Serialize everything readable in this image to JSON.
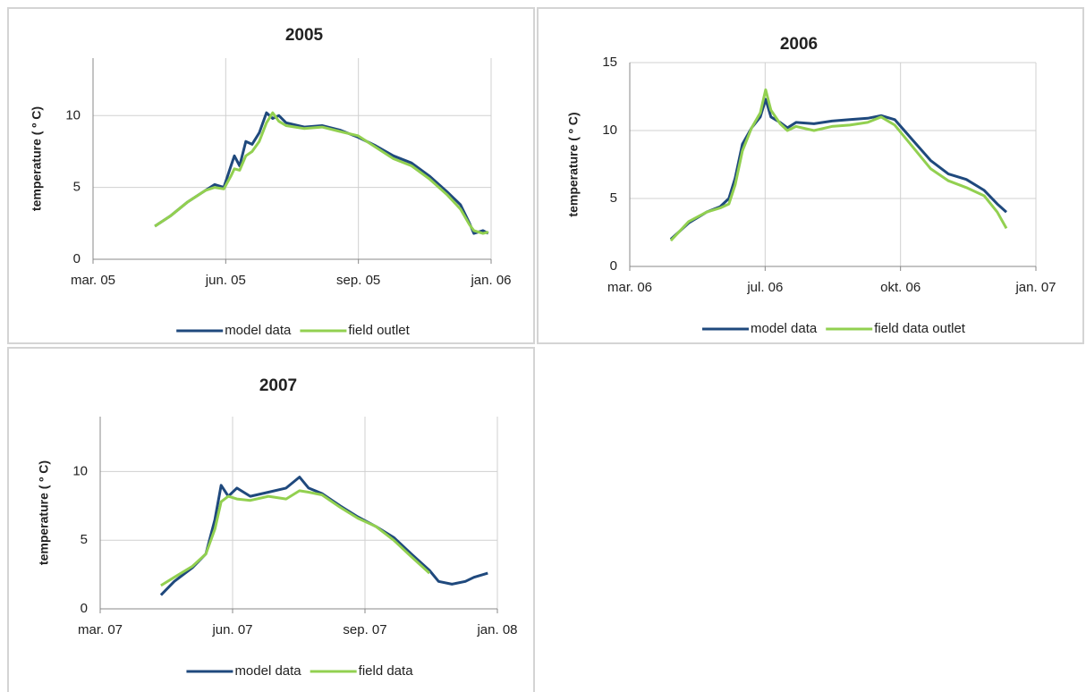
{
  "chart_data": [
    {
      "type": "line",
      "title": "2005",
      "y_label": "temperature ( º C)",
      "x": [
        2005.299,
        2005.331,
        2005.368,
        2005.405,
        2005.424,
        2005.443,
        2005.458,
        2005.465,
        2005.476,
        2005.489,
        2005.502,
        2005.517,
        2005.532,
        2005.545,
        2005.558,
        2005.573,
        2005.611,
        2005.648,
        2005.685,
        2005.723,
        2005.76,
        2005.797,
        2005.835,
        2005.872,
        2005.909,
        2005.937,
        2005.956,
        2005.965,
        2005.984,
        2005.995
      ],
      "series": [
        {
          "name": "model data",
          "color": "#1f497d",
          "values": [
            2.3,
            3.0,
            4.0,
            4.8,
            5.2,
            5.0,
            6.5,
            7.2,
            6.5,
            8.2,
            8.0,
            8.8,
            10.2,
            9.8,
            10.0,
            9.5,
            9.2,
            9.3,
            9.0,
            8.5,
            7.9,
            7.2,
            6.7,
            5.8,
            4.7,
            3.8,
            2.5,
            1.8,
            2.0,
            1.8
          ]
        },
        {
          "name": "field outlet",
          "color": "#92d050",
          "values": [
            2.3,
            3.0,
            4.0,
            4.8,
            5.0,
            4.9,
            5.8,
            6.3,
            6.2,
            7.2,
            7.5,
            8.2,
            9.5,
            10.2,
            9.6,
            9.3,
            9.1,
            9.2,
            8.9,
            8.6,
            7.8,
            7.0,
            6.5,
            5.6,
            4.5,
            3.5,
            2.4,
            2.0,
            1.8,
            1.9
          ]
        }
      ],
      "xlim": [
        2005.17,
        2006.001
      ],
      "xticks": [
        {
          "value": 2005.17,
          "label": "mar. 05"
        },
        {
          "value": 2005.447,
          "label": "jun. 05"
        },
        {
          "value": 2005.724,
          "label": "sep. 05"
        },
        {
          "value": 2006.001,
          "label": "jan. 06"
        }
      ],
      "ylim": [
        0,
        14
      ],
      "yticks": [
        0,
        5,
        10
      ],
      "grid": true,
      "legend": "bottom"
    },
    {
      "type": "line",
      "title": "2006",
      "y_label": "temperature ( º C)",
      "x": [
        2006.315,
        2006.352,
        2006.389,
        2006.417,
        2006.435,
        2006.448,
        2006.463,
        2006.482,
        2006.5,
        2006.511,
        2006.522,
        2006.541,
        2006.556,
        2006.574,
        2006.611,
        2006.648,
        2006.685,
        2006.722,
        2006.75,
        2006.778,
        2006.815,
        2006.852,
        2006.889,
        2006.926,
        2006.963,
        2006.99,
        2007.009
      ],
      "series": [
        {
          "name": "model data",
          "color": "#1f497d",
          "values": [
            2.0,
            3.2,
            4.0,
            4.4,
            5.0,
            6.5,
            9.0,
            10.2,
            11.0,
            12.3,
            11.0,
            10.6,
            10.2,
            10.6,
            10.5,
            10.7,
            10.8,
            10.9,
            11.1,
            10.8,
            9.3,
            7.8,
            6.8,
            6.4,
            5.6,
            4.6,
            4.0
          ]
        },
        {
          "name": "field data outlet",
          "color": "#92d050",
          "values": [
            1.9,
            3.3,
            4.0,
            4.3,
            4.6,
            6.0,
            8.5,
            10.2,
            11.3,
            13.0,
            11.5,
            10.5,
            10.0,
            10.3,
            10.0,
            10.3,
            10.4,
            10.6,
            11.0,
            10.4,
            8.8,
            7.2,
            6.3,
            5.8,
            5.2,
            4.0,
            2.8
          ]
        }
      ],
      "xlim": [
        2006.23,
        2007.07
      ],
      "xticks": [
        {
          "value": 2006.23,
          "label": "mar. 06"
        },
        {
          "value": 2006.51,
          "label": "jul. 06"
        },
        {
          "value": 2006.79,
          "label": "okt. 06"
        },
        {
          "value": 2007.07,
          "label": "jan. 07"
        }
      ],
      "ylim": [
        0,
        15
      ],
      "yticks": [
        0,
        5,
        10,
        15
      ],
      "grid": true,
      "legend": "bottom"
    },
    {
      "type": "line",
      "title": "2007",
      "y_label": "temperature ( º C)",
      "x": [
        2007.297,
        2007.325,
        2007.363,
        2007.391,
        2007.41,
        2007.423,
        2007.438,
        2007.456,
        2007.484,
        2007.522,
        2007.559,
        2007.587,
        2007.606,
        2007.634,
        2007.672,
        2007.709,
        2007.747,
        2007.784,
        2007.821,
        2007.859,
        2007.878,
        2007.906,
        2007.934,
        2007.952,
        2007.981
      ],
      "series": [
        {
          "name": "model data",
          "color": "#1f497d",
          "values": [
            1.0,
            2.0,
            3.0,
            4.0,
            6.5,
            9.0,
            8.2,
            8.8,
            8.2,
            8.5,
            8.8,
            9.6,
            8.8,
            8.4,
            7.5,
            6.7,
            6.0,
            5.2,
            4.0,
            2.8,
            2.0,
            1.8,
            2.0,
            2.3,
            2.6
          ]
        },
        {
          "name": "field data",
          "color": "#92d050",
          "values": [
            1.7,
            2.3,
            3.1,
            4.0,
            5.8,
            7.8,
            8.2,
            8.0,
            7.9,
            8.2,
            8.0,
            8.6,
            8.5,
            8.3,
            7.4,
            6.6,
            6.0,
            5.0,
            3.8,
            2.6,
            null,
            null,
            null,
            null,
            null
          ]
        }
      ],
      "xlim": [
        2007.17,
        2008.001
      ],
      "xticks": [
        {
          "value": 2007.17,
          "label": "mar. 07"
        },
        {
          "value": 2007.447,
          "label": "jun. 07"
        },
        {
          "value": 2007.724,
          "label": "sep. 07"
        },
        {
          "value": 2008.001,
          "label": "jan. 08"
        }
      ],
      "ylim": [
        0,
        14
      ],
      "yticks": [
        0,
        5,
        10
      ],
      "grid": true,
      "legend": "bottom"
    }
  ]
}
